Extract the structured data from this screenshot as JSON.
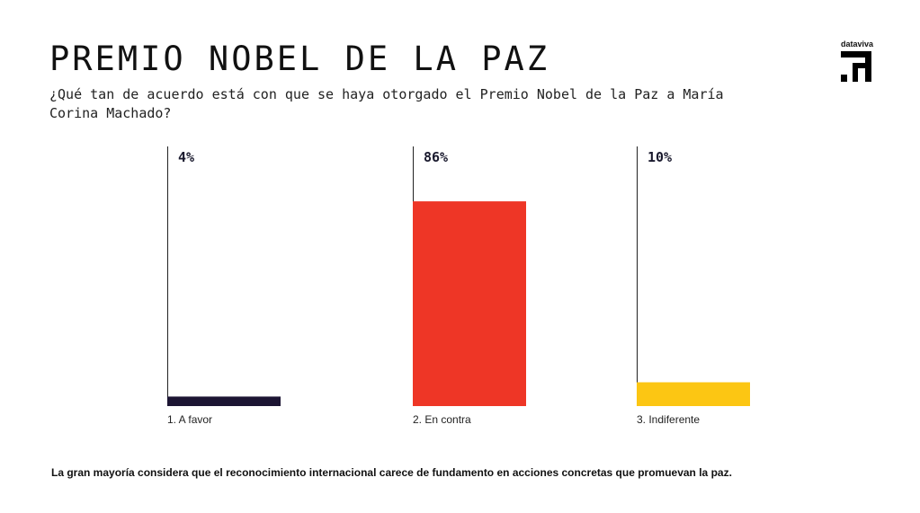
{
  "header": {
    "title": "PREMIO NOBEL DE LA PAZ",
    "subtitle": "¿Qué tan de acuerdo está con que se haya otorgado el Premio Nobel de la Paz a María Corina Machado?",
    "brand": "dataviva"
  },
  "chart_data": {
    "type": "bar",
    "categories": [
      "1.  A favor",
      "2.  En contra",
      "3.  Indiferente"
    ],
    "values": [
      4,
      86,
      10
    ],
    "value_labels": [
      "4%",
      "86%",
      "10%"
    ],
    "colors": [
      "#1c1533",
      "#ee3626",
      "#fcc613"
    ],
    "ylim": [
      0,
      100
    ],
    "title": "PREMIO NOBEL DE LA PAZ"
  },
  "footer": {
    "note": "La gran mayoría considera que el reconocimiento internacional carece de fundamento en acciones concretas que promuevan la paz."
  }
}
